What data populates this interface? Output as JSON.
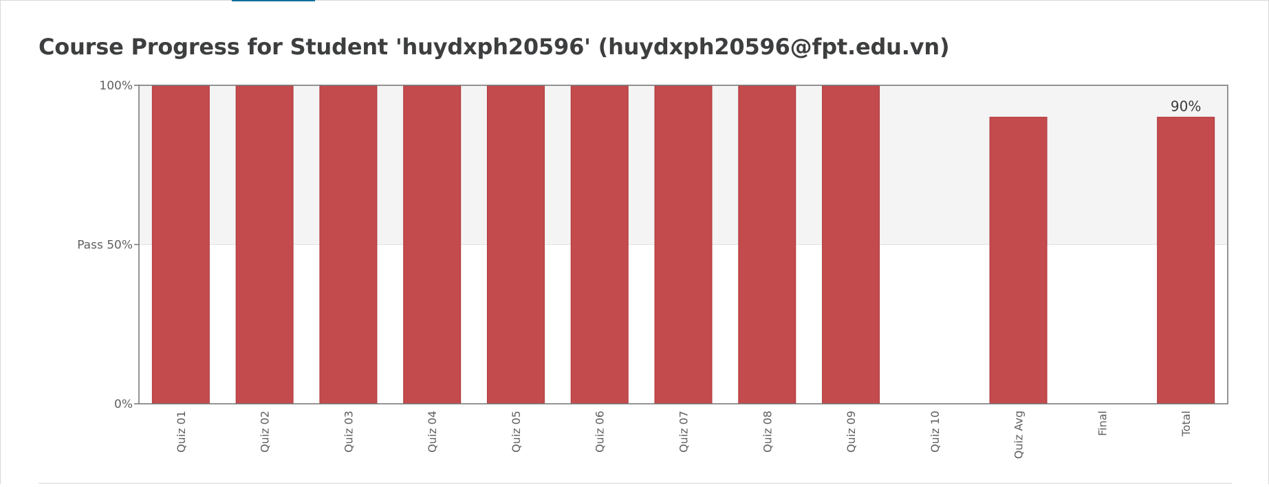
{
  "page": {
    "title": "Course Progress for Student 'huydxph20596' (huydxph20596@fpt.edu.vn)"
  },
  "colors": {
    "bar": "#c34a4d",
    "bar_stroke": "#b0393c",
    "pass_band": "#f4f4f4",
    "axis": "#707070",
    "tick_text": "#5f5f5f",
    "accent": "#126f9a"
  },
  "chart_data": {
    "type": "bar",
    "title": "",
    "xlabel": "",
    "ylabel": "",
    "ylim": [
      0,
      100
    ],
    "y_ticks": [
      {
        "value": 0,
        "label": "0%"
      },
      {
        "value": 50,
        "label": "Pass 50%"
      },
      {
        "value": 100,
        "label": "100%"
      }
    ],
    "pass_threshold": 50,
    "categories": [
      "Quiz 01",
      "Quiz 02",
      "Quiz 03",
      "Quiz 04",
      "Quiz 05",
      "Quiz 06",
      "Quiz 07",
      "Quiz 08",
      "Quiz 09",
      "Quiz 10",
      "Quiz Avg",
      "Final",
      "Total"
    ],
    "values": [
      100,
      100,
      100,
      100,
      100,
      100,
      100,
      100,
      100,
      0,
      90,
      0,
      90
    ],
    "annotations": [
      {
        "category": "Total",
        "label": "90%"
      }
    ],
    "grid": false,
    "legend": "none"
  }
}
